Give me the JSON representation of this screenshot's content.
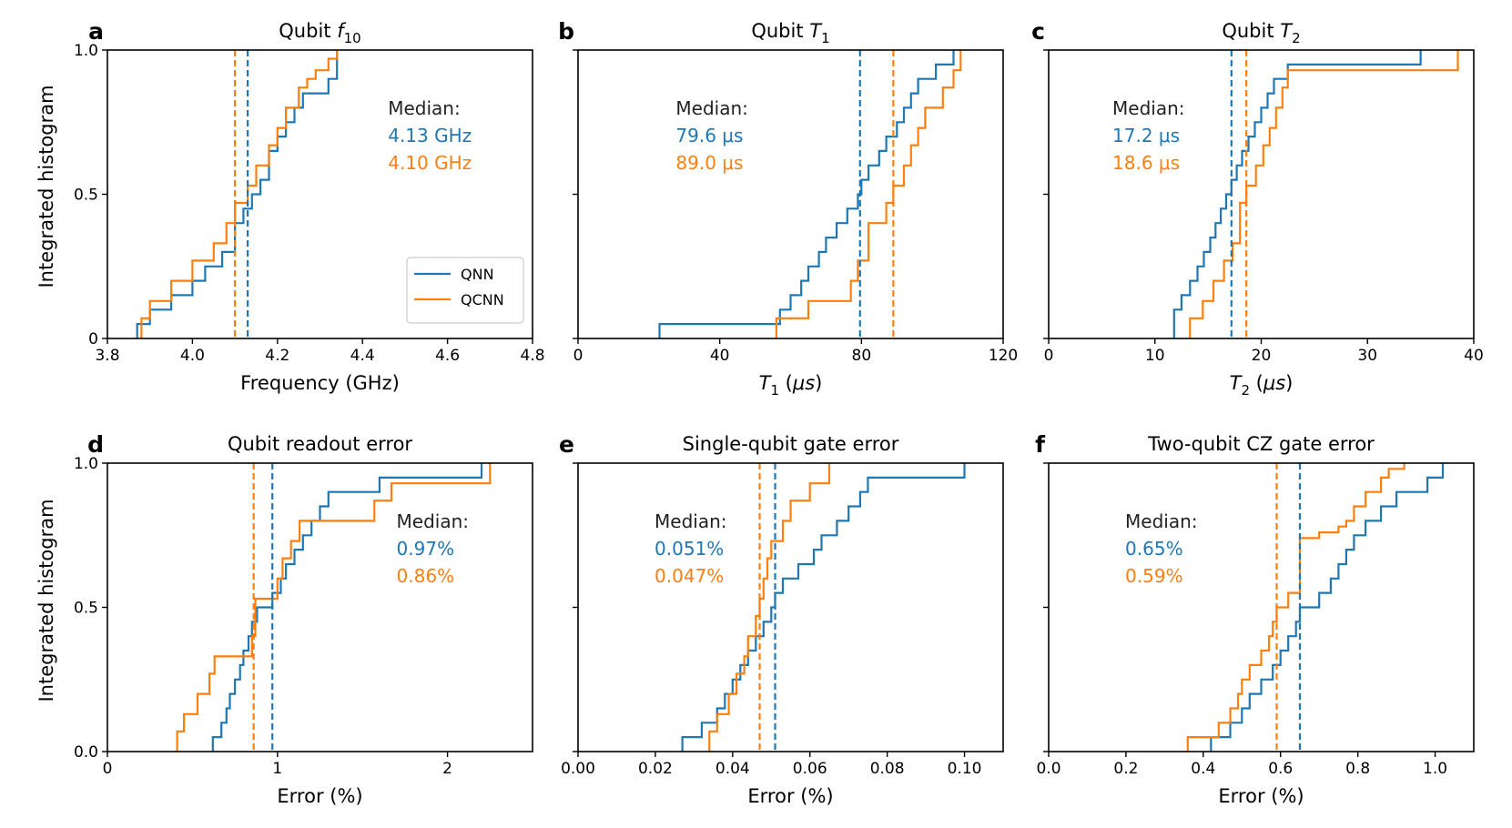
{
  "colors": {
    "qnn": "#1f77b4",
    "qcnn": "#ff7f0e"
  },
  "ylabel": "Integrated histogram",
  "median_label": "Median:",
  "legend": [
    {
      "name": "QNN",
      "color": "#1f77b4"
    },
    {
      "name": "QCNN",
      "color": "#ff7f0e"
    }
  ],
  "chart_data": [
    {
      "type": "line",
      "letter": "a",
      "title": "Qubit f10",
      "xlabel": "Frequency (GHz)",
      "xlim": [
        3.8,
        4.8
      ],
      "ylim": [
        0,
        1
      ],
      "xticks": [
        {
          "v": 3.8,
          "label": "3.8"
        },
        {
          "v": 4.0,
          "label": "4.0"
        },
        {
          "v": 4.2,
          "label": "4.2"
        },
        {
          "v": 4.4,
          "label": "4.4"
        },
        {
          "v": 4.6,
          "label": "4.6"
        },
        {
          "v": 4.8,
          "label": "4.8"
        }
      ],
      "yticks": [
        {
          "v": 0,
          "label": "0"
        },
        {
          "v": 0.5,
          "label": "0.5"
        },
        {
          "v": 1.0,
          "label": "1.0"
        }
      ],
      "median": {
        "qnn": 4.13,
        "qcnn": 4.1,
        "qnn_text": "4.13 GHz",
        "qcnn_text": "4.10 GHz"
      },
      "series": [
        {
          "name": "QNN",
          "x": [
            3.87,
            3.9,
            3.95,
            4.0,
            4.03,
            4.07,
            4.1,
            4.12,
            4.14,
            4.16,
            4.18,
            4.2,
            4.22,
            4.24,
            4.26,
            4.28,
            4.32,
            4.34
          ],
          "y": [
            0.05,
            0.1,
            0.15,
            0.2,
            0.25,
            0.3,
            0.4,
            0.45,
            0.5,
            0.55,
            0.65,
            0.7,
            0.75,
            0.8,
            0.85,
            0.85,
            0.9,
            1.0
          ]
        },
        {
          "name": "QCNN",
          "x": [
            3.88,
            3.9,
            3.95,
            4.0,
            4.05,
            4.08,
            4.1,
            4.13,
            4.15,
            4.18,
            4.2,
            4.22,
            4.25,
            4.27,
            4.29,
            4.32,
            4.34
          ],
          "y": [
            0.07,
            0.13,
            0.2,
            0.27,
            0.33,
            0.4,
            0.47,
            0.53,
            0.6,
            0.67,
            0.73,
            0.8,
            0.87,
            0.9,
            0.93,
            0.97,
            1.0
          ]
        }
      ]
    },
    {
      "type": "line",
      "letter": "b",
      "title": "Qubit T1",
      "xlabel": "T1 (μs)",
      "xlim": [
        0,
        120
      ],
      "ylim": [
        0,
        1
      ],
      "xticks": [
        {
          "v": 0,
          "label": "0"
        },
        {
          "v": 40,
          "label": "40"
        },
        {
          "v": 80,
          "label": "80"
        },
        {
          "v": 120,
          "label": "120"
        }
      ],
      "yticks": [],
      "median": {
        "qnn": 79.6,
        "qcnn": 89.0,
        "qnn_text": "79.6 μs",
        "qcnn_text": "89.0 μs"
      },
      "series": [
        {
          "name": "QNN",
          "x": [
            23,
            57,
            60,
            63,
            65,
            68,
            70,
            73,
            76,
            79,
            80,
            82,
            85,
            87,
            90,
            92,
            94,
            96,
            98,
            101,
            103,
            106
          ],
          "y": [
            0.05,
            0.1,
            0.15,
            0.2,
            0.25,
            0.3,
            0.35,
            0.4,
            0.45,
            0.5,
            0.55,
            0.6,
            0.65,
            0.7,
            0.75,
            0.8,
            0.85,
            0.9,
            0.9,
            0.95,
            0.95,
            1.0
          ]
        },
        {
          "name": "QCNN",
          "x": [
            56,
            65,
            77,
            79,
            82,
            87,
            89,
            92,
            94,
            96,
            98,
            103,
            106,
            108
          ],
          "y": [
            0.07,
            0.13,
            0.2,
            0.27,
            0.4,
            0.47,
            0.53,
            0.6,
            0.67,
            0.73,
            0.8,
            0.87,
            0.93,
            1.0
          ]
        }
      ]
    },
    {
      "type": "line",
      "letter": "c",
      "title": "Qubit T2",
      "xlabel": "T2 (μs)",
      "xlim": [
        0,
        40
      ],
      "ylim": [
        0,
        1
      ],
      "xticks": [
        {
          "v": 0,
          "label": "0"
        },
        {
          "v": 10,
          "label": "10"
        },
        {
          "v": 20,
          "label": "20"
        },
        {
          "v": 30,
          "label": "30"
        },
        {
          "v": 40,
          "label": "40"
        }
      ],
      "yticks": [],
      "median": {
        "qnn": 17.2,
        "qcnn": 18.6,
        "qnn_text": "17.2 μs",
        "qcnn_text": "18.6 μs"
      },
      "series": [
        {
          "name": "QNN",
          "x": [
            11.8,
            12.5,
            13.3,
            14.0,
            14.6,
            15.2,
            15.7,
            16.2,
            16.7,
            17.2,
            17.7,
            18.2,
            18.8,
            19.4,
            20.0,
            20.6,
            21.2,
            21.8,
            22.5,
            35
          ],
          "y": [
            0.1,
            0.15,
            0.2,
            0.25,
            0.3,
            0.35,
            0.4,
            0.45,
            0.5,
            0.55,
            0.6,
            0.65,
            0.7,
            0.75,
            0.8,
            0.85,
            0.9,
            0.9,
            0.95,
            1.0
          ]
        },
        {
          "name": "QCNN",
          "x": [
            13.3,
            14.5,
            15.5,
            16.5,
            17.3,
            18.0,
            18.6,
            19.5,
            20.2,
            20.8,
            21.4,
            22.0,
            22.5,
            38.5
          ],
          "y": [
            0.07,
            0.13,
            0.2,
            0.27,
            0.33,
            0.47,
            0.53,
            0.6,
            0.67,
            0.73,
            0.8,
            0.87,
            0.93,
            1.0
          ]
        }
      ]
    },
    {
      "type": "line",
      "letter": "d",
      "title": "Qubit readout error",
      "xlabel": "Error (%)",
      "xlim": [
        0,
        2.5
      ],
      "ylim": [
        0,
        1
      ],
      "xticks": [
        {
          "v": 0,
          "label": "0"
        },
        {
          "v": 1,
          "label": "1"
        },
        {
          "v": 2,
          "label": "2"
        }
      ],
      "yticks": [
        {
          "v": 0,
          "label": "0.0"
        },
        {
          "v": 0.5,
          "label": "0.5"
        },
        {
          "v": 1.0,
          "label": "1.0"
        }
      ],
      "median": {
        "qnn": 0.97,
        "qcnn": 0.86,
        "qnn_text": "0.97%",
        "qcnn_text": "0.86%"
      },
      "series": [
        {
          "name": "QNN",
          "x": [
            0.62,
            0.67,
            0.7,
            0.72,
            0.75,
            0.78,
            0.8,
            0.83,
            0.85,
            0.88,
            0.9,
            0.97,
            1.02,
            1.05,
            1.1,
            1.15,
            1.2,
            1.25,
            1.3,
            1.4,
            1.6,
            2.2
          ],
          "y": [
            0.05,
            0.1,
            0.15,
            0.2,
            0.25,
            0.3,
            0.35,
            0.4,
            0.45,
            0.5,
            0.5,
            0.55,
            0.6,
            0.65,
            0.7,
            0.75,
            0.8,
            0.85,
            0.9,
            0.9,
            0.95,
            1.0
          ]
        },
        {
          "name": "QCNN",
          "x": [
            0.41,
            0.45,
            0.53,
            0.6,
            0.63,
            0.85,
            0.87,
            1.0,
            1.03,
            1.08,
            1.13,
            1.57,
            1.67,
            2.25
          ],
          "y": [
            0.07,
            0.13,
            0.2,
            0.27,
            0.33,
            0.4,
            0.53,
            0.6,
            0.67,
            0.73,
            0.8,
            0.87,
            0.93,
            1.0
          ]
        }
      ]
    },
    {
      "type": "line",
      "letter": "e",
      "title": "Single-qubit gate error",
      "xlabel": "Error (%)",
      "xlim": [
        0,
        0.11
      ],
      "ylim": [
        0,
        1
      ],
      "xticks": [
        {
          "v": 0,
          "label": "0.00"
        },
        {
          "v": 0.02,
          "label": "0.02"
        },
        {
          "v": 0.04,
          "label": "0.04"
        },
        {
          "v": 0.06,
          "label": "0.06"
        },
        {
          "v": 0.08,
          "label": "0.08"
        },
        {
          "v": 0.1,
          "label": "0.10"
        }
      ],
      "yticks": [],
      "median": {
        "qnn": 0.051,
        "qcnn": 0.047,
        "qnn_text": "0.051%",
        "qcnn_text": "0.047%"
      },
      "series": [
        {
          "name": "QNN",
          "x": [
            0.027,
            0.032,
            0.036,
            0.038,
            0.04,
            0.042,
            0.044,
            0.046,
            0.048,
            0.05,
            0.051,
            0.053,
            0.057,
            0.061,
            0.063,
            0.065,
            0.067,
            0.07,
            0.073,
            0.075,
            0.08,
            0.088,
            0.1
          ],
          "y": [
            0.05,
            0.1,
            0.15,
            0.2,
            0.25,
            0.3,
            0.35,
            0.4,
            0.45,
            0.5,
            0.55,
            0.6,
            0.65,
            0.7,
            0.75,
            0.75,
            0.8,
            0.85,
            0.9,
            0.95,
            0.95,
            0.95,
            1.0
          ]
        },
        {
          "name": "QCNN",
          "x": [
            0.034,
            0.036,
            0.039,
            0.041,
            0.043,
            0.044,
            0.046,
            0.047,
            0.048,
            0.049,
            0.05,
            0.053,
            0.055,
            0.06,
            0.065
          ],
          "y": [
            0.07,
            0.13,
            0.2,
            0.27,
            0.33,
            0.4,
            0.47,
            0.53,
            0.6,
            0.67,
            0.73,
            0.8,
            0.87,
            0.93,
            1.0
          ]
        }
      ]
    },
    {
      "type": "line",
      "letter": "f",
      "title": "Two-qubit CZ gate error",
      "xlabel": "Error (%)",
      "xlim": [
        0,
        1.1
      ],
      "ylim": [
        0,
        1
      ],
      "xticks": [
        {
          "v": 0,
          "label": "0.0"
        },
        {
          "v": 0.2,
          "label": "0.2"
        },
        {
          "v": 0.4,
          "label": "0.4"
        },
        {
          "v": 0.6,
          "label": "0.6"
        },
        {
          "v": 0.8,
          "label": "0.8"
        },
        {
          "v": 1.0,
          "label": "1.0"
        }
      ],
      "yticks": [],
      "median": {
        "qnn": 0.65,
        "qcnn": 0.59,
        "qnn_text": "0.65%",
        "qcnn_text": "0.59%"
      },
      "series": [
        {
          "name": "QNN",
          "x": [
            0.42,
            0.47,
            0.5,
            0.52,
            0.55,
            0.58,
            0.6,
            0.62,
            0.64,
            0.65,
            0.7,
            0.73,
            0.75,
            0.77,
            0.79,
            0.82,
            0.86,
            0.9,
            0.98,
            1.02
          ],
          "y": [
            0.05,
            0.1,
            0.15,
            0.2,
            0.25,
            0.3,
            0.35,
            0.4,
            0.45,
            0.5,
            0.55,
            0.6,
            0.65,
            0.7,
            0.75,
            0.8,
            0.85,
            0.9,
            0.95,
            1.0
          ]
        },
        {
          "name": "QCNN",
          "x": [
            0.36,
            0.44,
            0.47,
            0.49,
            0.5,
            0.52,
            0.55,
            0.57,
            0.58,
            0.59,
            0.62,
            0.65,
            0.7,
            0.75,
            0.77,
            0.79,
            0.82,
            0.86,
            0.88,
            0.92
          ],
          "y": [
            0.05,
            0.1,
            0.15,
            0.2,
            0.25,
            0.3,
            0.35,
            0.4,
            0.45,
            0.5,
            0.55,
            0.74,
            0.76,
            0.78,
            0.8,
            0.85,
            0.9,
            0.95,
            0.98,
            1.0
          ]
        }
      ]
    }
  ]
}
